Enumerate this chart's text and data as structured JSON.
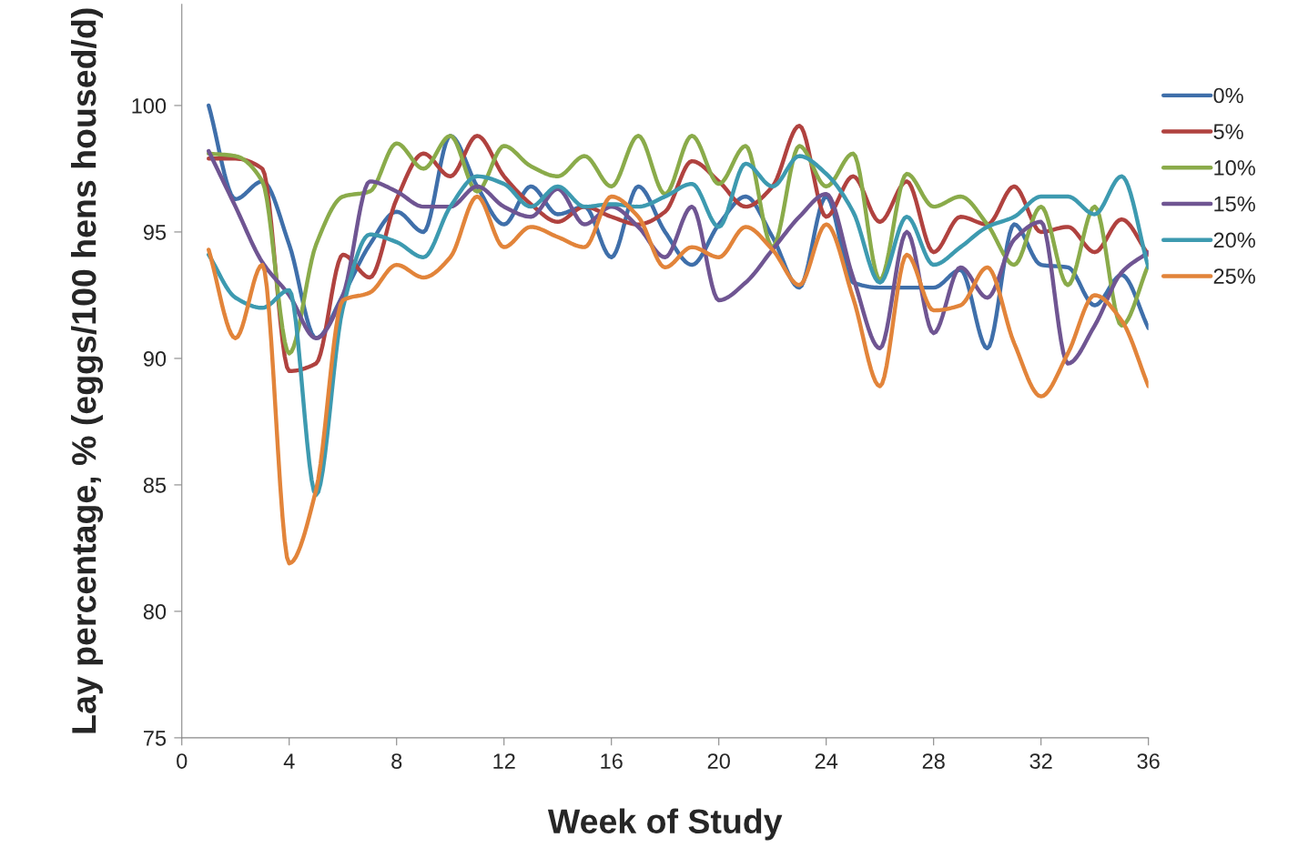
{
  "chart_data": {
    "type": "line",
    "xlabel": "Week of Study",
    "ylabel": "Lay percentage, % (eggs/100 hens housed/d)",
    "x": [
      1,
      2,
      3,
      4,
      5,
      6,
      7,
      8,
      9,
      10,
      11,
      12,
      13,
      14,
      15,
      16,
      17,
      18,
      19,
      20,
      21,
      22,
      23,
      24,
      25,
      26,
      27,
      28,
      29,
      30,
      31,
      32,
      33,
      34,
      35,
      36
    ],
    "series": [
      {
        "name": "0%",
        "color": "#3f6faa",
        "values": [
          100,
          96.3,
          97.0,
          94.5,
          90.8,
          92.5,
          94.5,
          95.8,
          95.0,
          98.8,
          96.8,
          95.3,
          96.8,
          95.7,
          96.0,
          94.0,
          96.8,
          95.0,
          93.7,
          95.3,
          96.4,
          94.8,
          92.8,
          96.4,
          93.0,
          92.8,
          92.8,
          92.8,
          93.5,
          90.4,
          95.3,
          93.7,
          93.6,
          92.1,
          93.3,
          91.2
        ]
      },
      {
        "name": "5%",
        "color": "#b0423f",
        "values": [
          97.9,
          97.9,
          97.5,
          89.5,
          89.8,
          94.1,
          93.2,
          96.3,
          98.1,
          97.2,
          98.8,
          97.2,
          96.1,
          95.4,
          96.0,
          95.6,
          95.3,
          95.8,
          97.8,
          97.0,
          96.0,
          96.8,
          99.2,
          95.6,
          97.2,
          95.4,
          97.0,
          94.2,
          95.6,
          95.3,
          96.8,
          95.0,
          95.2,
          94.2,
          95.5,
          94.1
        ]
      },
      {
        "name": "10%",
        "color": "#8aab4a",
        "values": [
          98.1,
          98.0,
          97.0,
          90.2,
          94.5,
          96.4,
          96.6,
          98.5,
          97.5,
          98.8,
          96.6,
          98.4,
          97.6,
          97.2,
          98.0,
          96.8,
          98.8,
          96.5,
          98.8,
          96.9,
          98.4,
          94.4,
          98.4,
          96.8,
          98.1,
          93.1,
          97.3,
          96.0,
          96.4,
          95.3,
          93.7,
          96.0,
          92.9,
          96.0,
          91.3,
          93.7
        ]
      },
      {
        "name": "15%",
        "color": "#6f5592",
        "values": [
          98.2,
          96.0,
          93.8,
          92.5,
          90.8,
          92.5,
          97.0,
          96.6,
          96.0,
          96.0,
          96.8,
          96.0,
          95.6,
          96.7,
          95.3,
          96.0,
          95.2,
          94.0,
          96.0,
          92.3,
          93.0,
          94.3,
          95.6,
          96.5,
          93.2,
          90.4,
          95.0,
          91.0,
          93.6,
          92.4,
          94.7,
          95.4,
          89.8,
          91.3,
          93.4,
          94.2
        ]
      },
      {
        "name": "20%",
        "color": "#3d9ab0",
        "values": [
          94.1,
          92.4,
          92.0,
          92.7,
          84.6,
          92.0,
          94.9,
          94.6,
          94.0,
          96.0,
          97.2,
          96.9,
          96.0,
          96.8,
          96.0,
          96.1,
          96.0,
          96.4,
          96.9,
          95.2,
          97.7,
          96.8,
          98.0,
          97.3,
          95.8,
          93.0,
          95.6,
          93.7,
          94.4,
          95.2,
          95.6,
          96.4,
          96.4,
          95.7,
          97.2,
          93.6
        ]
      },
      {
        "name": "25%",
        "color": "#e2843a",
        "values": [
          94.3,
          90.8,
          93.7,
          81.9,
          84.8,
          92.3,
          92.6,
          93.7,
          93.2,
          94.0,
          96.4,
          94.4,
          95.2,
          94.8,
          94.4,
          96.4,
          95.6,
          93.6,
          94.4,
          94.0,
          95.2,
          94.3,
          92.9,
          95.3,
          92.4,
          88.9,
          94.1,
          91.9,
          92.1,
          93.6,
          90.6,
          88.5,
          90.2,
          92.5,
          91.5,
          88.9
        ]
      }
    ],
    "xlim": [
      0,
      36
    ],
    "xticks": [
      0,
      4,
      8,
      12,
      16,
      20,
      24,
      28,
      32,
      36
    ],
    "ylim": [
      75,
      104
    ],
    "yticks": [
      75,
      80,
      85,
      90,
      95,
      100
    ],
    "legend": "right",
    "marker": "none",
    "line_style": "solid"
  }
}
